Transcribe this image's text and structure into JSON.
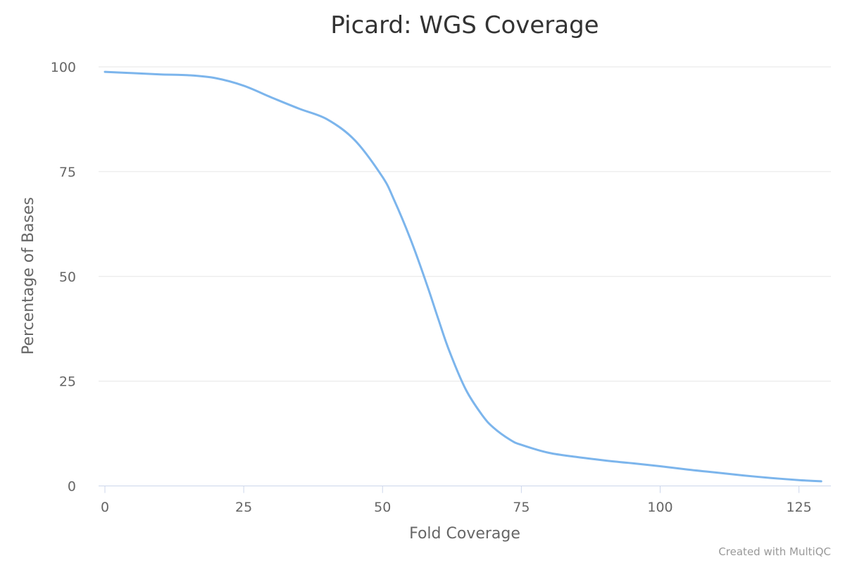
{
  "chart_data": {
    "type": "line",
    "title": "Picard: WGS Coverage",
    "xlabel": "Fold Coverage",
    "ylabel": "Percentage of Bases",
    "xlim": [
      0,
      130
    ],
    "ylim": [
      0,
      100
    ],
    "x_ticks": [
      "0",
      "25",
      "50",
      "75",
      "100",
      "125"
    ],
    "y_ticks": [
      "0",
      "25",
      "50",
      "75",
      "100"
    ],
    "grid": true,
    "legend": false,
    "series": [
      {
        "color": "#7cb5ec",
        "x": [
          0,
          5,
          10,
          15,
          20,
          25,
          30,
          35,
          40,
          45,
          50,
          52,
          55,
          58,
          60,
          62,
          65,
          68,
          70,
          73,
          75,
          80,
          85,
          90,
          95,
          100,
          105,
          110,
          115,
          120,
          125,
          129
        ],
        "y": [
          98.8,
          98.5,
          98.2,
          98.0,
          97.3,
          95.5,
          92.7,
          90.0,
          87.5,
          82.5,
          73.7,
          68.5,
          59.0,
          48.0,
          40.0,
          32.3,
          23.0,
          16.8,
          13.9,
          11.0,
          9.8,
          7.9,
          6.9,
          6.1,
          5.4,
          4.7,
          3.9,
          3.2,
          2.5,
          1.9,
          1.4,
          1.1
        ]
      }
    ]
  },
  "credit": "Created with MultiQC"
}
